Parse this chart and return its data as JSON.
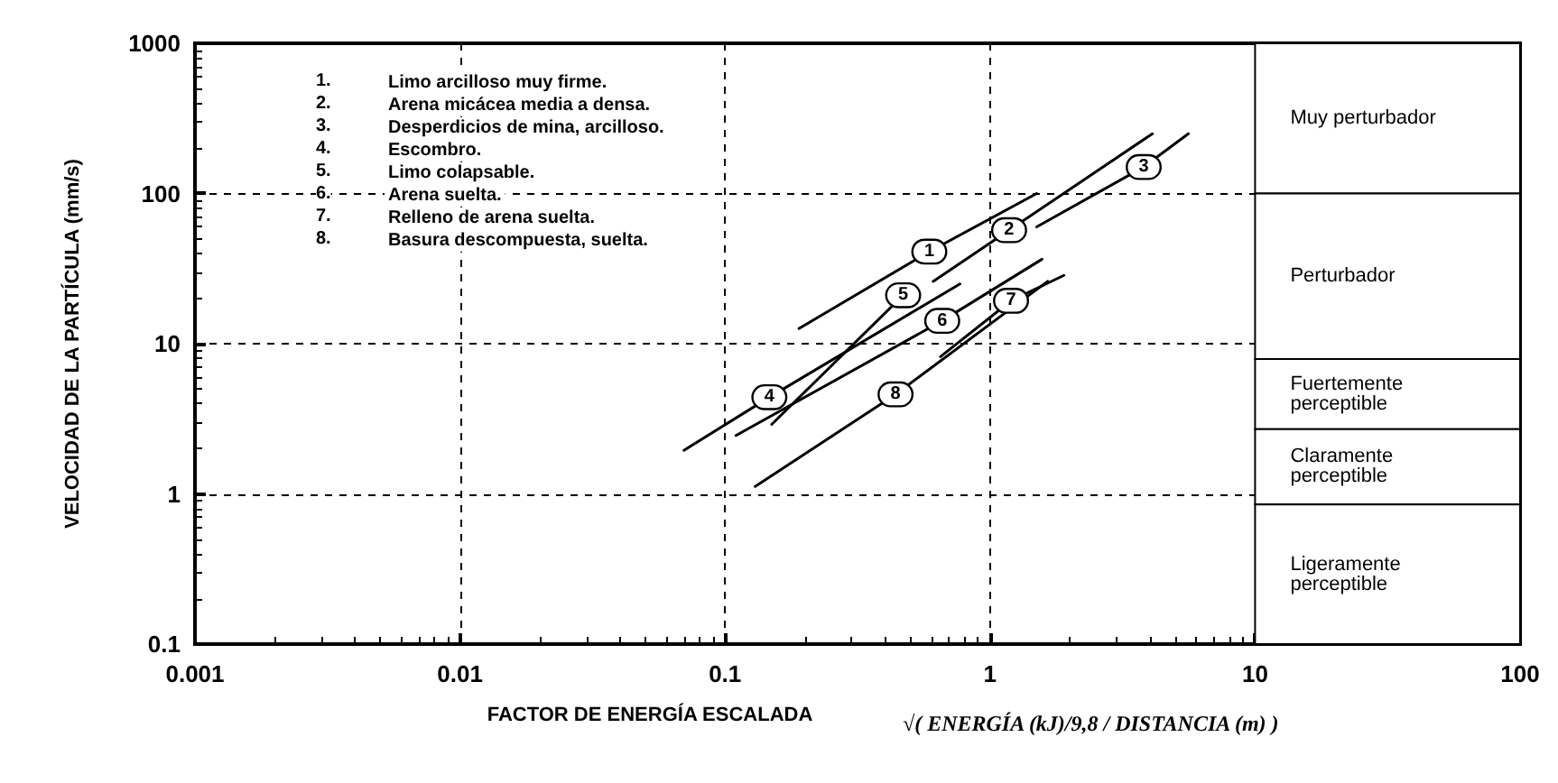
{
  "chart_data": {
    "type": "line",
    "xlabel": "FACTOR DE ENERGÍA ESCALADA",
    "ylabel": "VELOCIDAD DE LA PARTÍCULA (mm/s)",
    "log": "xy",
    "grid": true,
    "legend": false,
    "marker": "none",
    "line_style": "solid",
    "xlim": [
      0.001,
      100
    ],
    "xticks": [
      0.001,
      0.01,
      0.1,
      1,
      10,
      100
    ],
    "ylim": [
      0.1,
      1000
    ],
    "yticks": [
      0.1,
      1,
      10,
      100,
      1000
    ],
    "series": [
      {
        "name": "1",
        "color": "#000000",
        "x": [
          0.19,
          0.59,
          1.5
        ],
        "values": [
          12.6,
          41,
          100
        ]
      },
      {
        "name": "2",
        "color": "#000000",
        "x": [
          0.61,
          1.18,
          4.1
        ],
        "values": [
          26,
          57,
          250
        ]
      },
      {
        "name": "3",
        "color": "#000000",
        "x": [
          1.5,
          3.8,
          5.6
        ],
        "values": [
          60,
          150,
          250
        ]
      },
      {
        "name": "4",
        "color": "#000000",
        "x": [
          0.07,
          0.147,
          0.77
        ],
        "values": [
          1.95,
          4.4,
          25
        ]
      },
      {
        "name": "5",
        "color": "#000000",
        "x": [
          0.15,
          0.47,
          0.51
        ],
        "values": [
          2.9,
          21,
          23.6
        ]
      },
      {
        "name": "6",
        "color": "#000000",
        "x": [
          0.11,
          0.66,
          1.57
        ],
        "values": [
          2.45,
          14.2,
          36.5
        ]
      },
      {
        "name": "7",
        "color": "#000000",
        "x": [
          0.65,
          1.2,
          1.9
        ],
        "values": [
          8.2,
          19.3,
          28.5
        ]
      },
      {
        "name": "8",
        "color": "#000000",
        "x": [
          0.13,
          0.44,
          1.65
        ],
        "values": [
          1.12,
          4.6,
          26
        ]
      }
    ],
    "bands": [
      {
        "axis": "y",
        "from": 100,
        "to": 1000,
        "label": "Muy perturbador"
      },
      {
        "axis": "y",
        "from": 7.9,
        "to": 100,
        "label": "Perturbador"
      },
      {
        "axis": "y",
        "from": 2.7,
        "to": 7.9,
        "label": "Fuertemente perceptible"
      },
      {
        "axis": "y",
        "from": 0.85,
        "to": 2.7,
        "label": "Claramente perceptible"
      },
      {
        "axis": "y",
        "from": 0.1,
        "to": 0.85,
        "label": "Ligeramente perceptible"
      }
    ],
    "annotations": [
      "1.\tLimo arcilloso muy firme.",
      "2.\tArena micácea media a densa.",
      "3.\tDesperdicios de mina, arcilloso.",
      "4.\tEscombro.",
      "5.\tLimo colapsable.",
      "6.\tArena suelta.",
      "7.\tRelleno de arena suelta.",
      "8.\tBasura descompuesta, suelta.",
      "√( ENERGÍA (kJ)/9,8 / DISTANCIA (m) )"
    ]
  }
}
